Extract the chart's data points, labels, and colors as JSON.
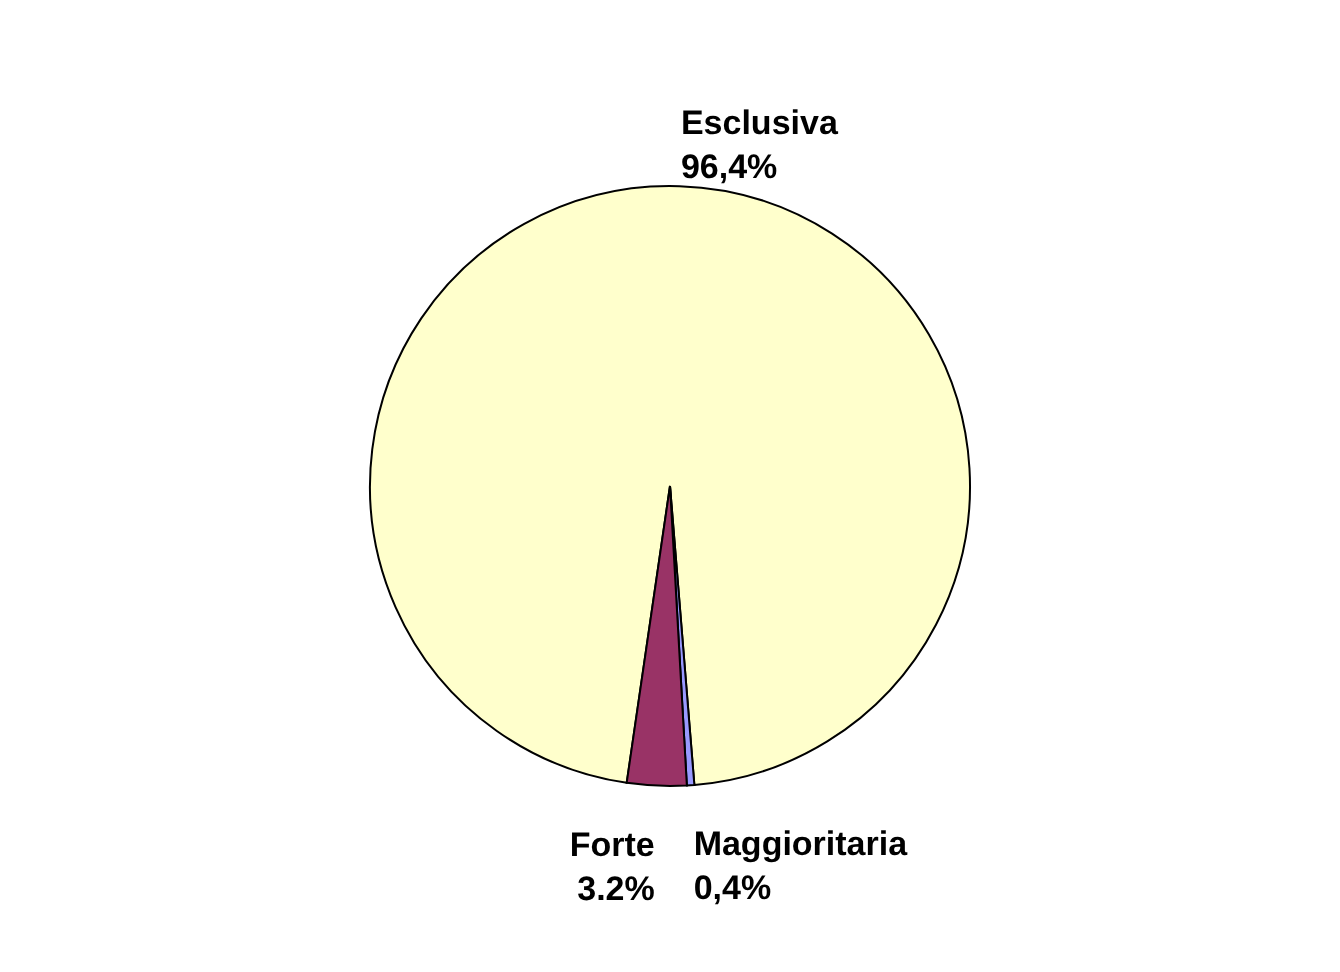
{
  "chart_data": {
    "type": "pie",
    "categories": [
      "Esclusiva",
      "Maggioritaria",
      "Forte"
    ],
    "values": [
      96.4,
      0.4,
      3.2
    ],
    "colors": [
      "#ffffcc",
      "#9999ff",
      "#993366"
    ],
    "value_labels": [
      "96,4%",
      "0,4%",
      "3.2%"
    ]
  }
}
